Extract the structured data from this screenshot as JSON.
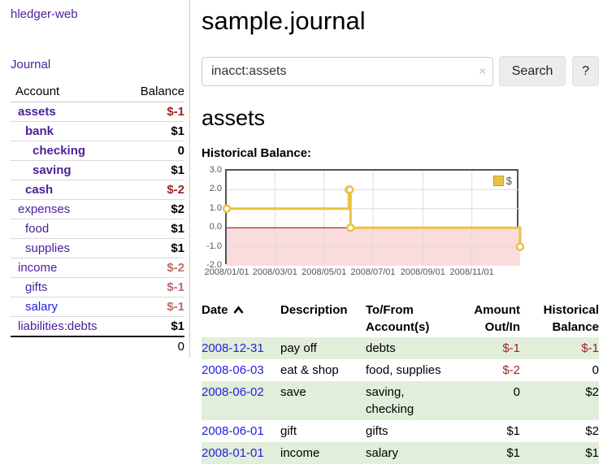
{
  "app_title": "hledger-web",
  "sidebar": {
    "journal_link": "Journal",
    "accounts_table": {
      "account_header": "Account",
      "balance_header": "Balance",
      "rows": [
        {
          "account": "assets",
          "level": 0,
          "bold": true,
          "link_style": "purple",
          "balance": "$-1",
          "balance_style": "neg-strong"
        },
        {
          "account": "bank",
          "level": 1,
          "bold": true,
          "link_style": "purple",
          "balance": "$1",
          "balance_style": ""
        },
        {
          "account": "checking",
          "level": 2,
          "bold": true,
          "link_style": "purple",
          "balance": "0",
          "balance_style": ""
        },
        {
          "account": "saving",
          "level": 2,
          "bold": true,
          "link_style": "purple",
          "balance": "$1",
          "balance_style": ""
        },
        {
          "account": "cash",
          "level": 1,
          "bold": true,
          "link_style": "purple",
          "balance": "$-2",
          "balance_style": "neg-strong"
        },
        {
          "account": "expenses",
          "level": 0,
          "bold": false,
          "link_style": "purple",
          "balance": "$2",
          "balance_style": ""
        },
        {
          "account": "food",
          "level": 1,
          "bold": false,
          "link_style": "purple",
          "balance": "$1",
          "balance_style": ""
        },
        {
          "account": "supplies",
          "level": 1,
          "bold": false,
          "link_style": "purple",
          "balance": "$1",
          "balance_style": ""
        },
        {
          "account": "income",
          "level": 0,
          "bold": false,
          "link_style": "purple",
          "balance": "$-2",
          "balance_style": "neg-soft"
        },
        {
          "account": "gifts",
          "level": 1,
          "bold": false,
          "link_style": "purple",
          "balance": "$-1",
          "balance_style": "neg-soft"
        },
        {
          "account": "salary",
          "level": 1,
          "bold": false,
          "link_style": "blue",
          "balance": "$-1",
          "balance_style": "neg-soft"
        },
        {
          "account": "liabilities:debts",
          "level": 0,
          "bold": false,
          "link_style": "purple",
          "balance": "$1",
          "balance_style": ""
        }
      ],
      "total": "0"
    }
  },
  "main": {
    "title": "sample.journal",
    "search": {
      "value": "inacct:assets",
      "clear": "×",
      "button": "Search",
      "help": "?"
    },
    "account_heading": "assets",
    "chart_label": "Historical Balance:"
  },
  "chart_data": {
    "type": "line",
    "step": true,
    "title": "Historical Balance",
    "legend_position": "top-right",
    "series": [
      {
        "name": "$",
        "color": "#e9c240",
        "points": [
          {
            "date": "2008-01-01",
            "value": 1
          },
          {
            "date": "2008-06-01",
            "value": 2
          },
          {
            "date": "2008-06-02",
            "value": 2
          },
          {
            "date": "2008-06-03",
            "value": 0
          },
          {
            "date": "2008-12-31",
            "value": -1
          }
        ]
      }
    ],
    "xrange": [
      "2008-01-01",
      "2008-12-31"
    ],
    "ylim": [
      -2,
      3
    ],
    "yticks": [
      {
        "value": 3,
        "label": "3.0"
      },
      {
        "value": 2,
        "label": "2.0"
      },
      {
        "value": 1,
        "label": "1.0"
      },
      {
        "value": 0,
        "label": "0.0"
      },
      {
        "value": -1,
        "label": "-1.0"
      },
      {
        "value": -2,
        "label": "-2.0"
      }
    ],
    "xticks": [
      {
        "date": "2008-01-01",
        "label": "2008/01/01"
      },
      {
        "date": "2008-03-01",
        "label": "2008/03/01"
      },
      {
        "date": "2008-05-01",
        "label": "2008/05/01"
      },
      {
        "date": "2008-07-01",
        "label": "2008/07/01"
      },
      {
        "date": "2008-09-01",
        "label": "2008/09/01"
      },
      {
        "date": "2008-11-01",
        "label": "2008/11/01"
      }
    ],
    "grid_on": true,
    "negative_fill": "#fadcdc",
    "zero_line_color": "#8b0000",
    "grid_color": "#dcdcdc",
    "border_color": "#545454"
  },
  "register": {
    "headers": {
      "date": "Date",
      "description": "Description",
      "accounts": "To/From Account(s)",
      "amount": "Amount Out/In",
      "balance": "Historical Balance"
    },
    "rows": [
      {
        "date": "2008-12-31",
        "description": "pay off",
        "accounts": "debts",
        "amount": "$-1",
        "amount_negative": true,
        "balance": "$-1",
        "balance_negative": true
      },
      {
        "date": "2008-06-03",
        "description": "eat & shop",
        "accounts": "food, supplies",
        "amount": "$-2",
        "amount_negative": true,
        "balance": "0",
        "balance_negative": false
      },
      {
        "date": "2008-06-02",
        "description": "save",
        "accounts": "saving, checking",
        "amount": "0",
        "amount_negative": false,
        "balance": "$2",
        "balance_negative": false
      },
      {
        "date": "2008-06-01",
        "description": "gift",
        "accounts": "gifts",
        "amount": "$1",
        "amount_negative": false,
        "balance": "$2",
        "balance_negative": false
      },
      {
        "date": "2008-01-01",
        "description": "income",
        "accounts": "salary",
        "amount": "$1",
        "amount_negative": false,
        "balance": "$1",
        "balance_negative": false
      }
    ]
  },
  "colors": {
    "link_purple": "#4b219b",
    "link_blue": "#2222dd",
    "negative_strong": "#9e1f1f",
    "negative_soft": "#bd6c6c",
    "row_green": "#e1eeda",
    "series_gold": "#e9c240"
  }
}
